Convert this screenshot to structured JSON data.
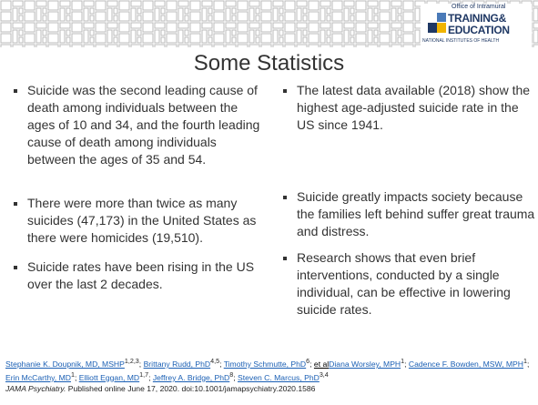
{
  "header": {
    "logo": {
      "line1": "Office of Intramural",
      "line2": "TRAINING&",
      "line3": "EDUCATION",
      "line4": "NATIONAL INSTITUTES OF HEALTH"
    }
  },
  "title": "Some Statistics",
  "left_bullets": [
    "Suicide was the second leading cause of death among individuals between the ages of 10 and 34, and the fourth leading cause of death among individuals between the ages of 35 and 54.",
    "There were more than twice as many suicides (47,173) in the United States as there were homicides (19,510).",
    "Suicide rates have been rising in the US over the last 2 decades."
  ],
  "right_bullets": [
    "The latest data available (2018) show the highest age-adjusted suicide rate in the US since 1941.",
    "Suicide greatly impacts society because the families left behind suffer great trauma and distress.",
    "Research shows that even brief interventions, conducted by a single individual, can be effective in lowering suicide rates."
  ],
  "citation": {
    "authors": [
      {
        "name": "Stephanie K. Doupnik, MD, MSHP",
        "sup": "1,2,3",
        "sep": "; "
      },
      {
        "name": "Brittany Rudd, PhD",
        "sup": "4,5",
        "sep": "; "
      },
      {
        "name": "Timothy Schmutte, PhD",
        "sup": "6",
        "sep": "; "
      },
      {
        "name": "et al",
        "sep": ""
      },
      {
        "name": "Diana Worsley, MPH",
        "sup": "1",
        "sep": "; "
      },
      {
        "name": "Cadence F. Bowden, MSW, MPH",
        "sup": "1",
        "sep": "; "
      },
      {
        "name": "Erin McCarthy, MD",
        "sup": "1",
        "sep": "; "
      },
      {
        "name": "Elliott Eggan, MD",
        "sup": "1,7",
        "sep": "; "
      },
      {
        "name": "Jeffrey A. Bridge, PhD",
        "sup": "8",
        "sep": "; "
      },
      {
        "name": "Steven C. Marcus, PhD",
        "sup": "3,4",
        "sep": ""
      }
    ],
    "journal": "JAMA Psychiatry.",
    "details": " Published online June 17, 2020. doi:10.1001/jamapsychiatry.2020.1586"
  }
}
